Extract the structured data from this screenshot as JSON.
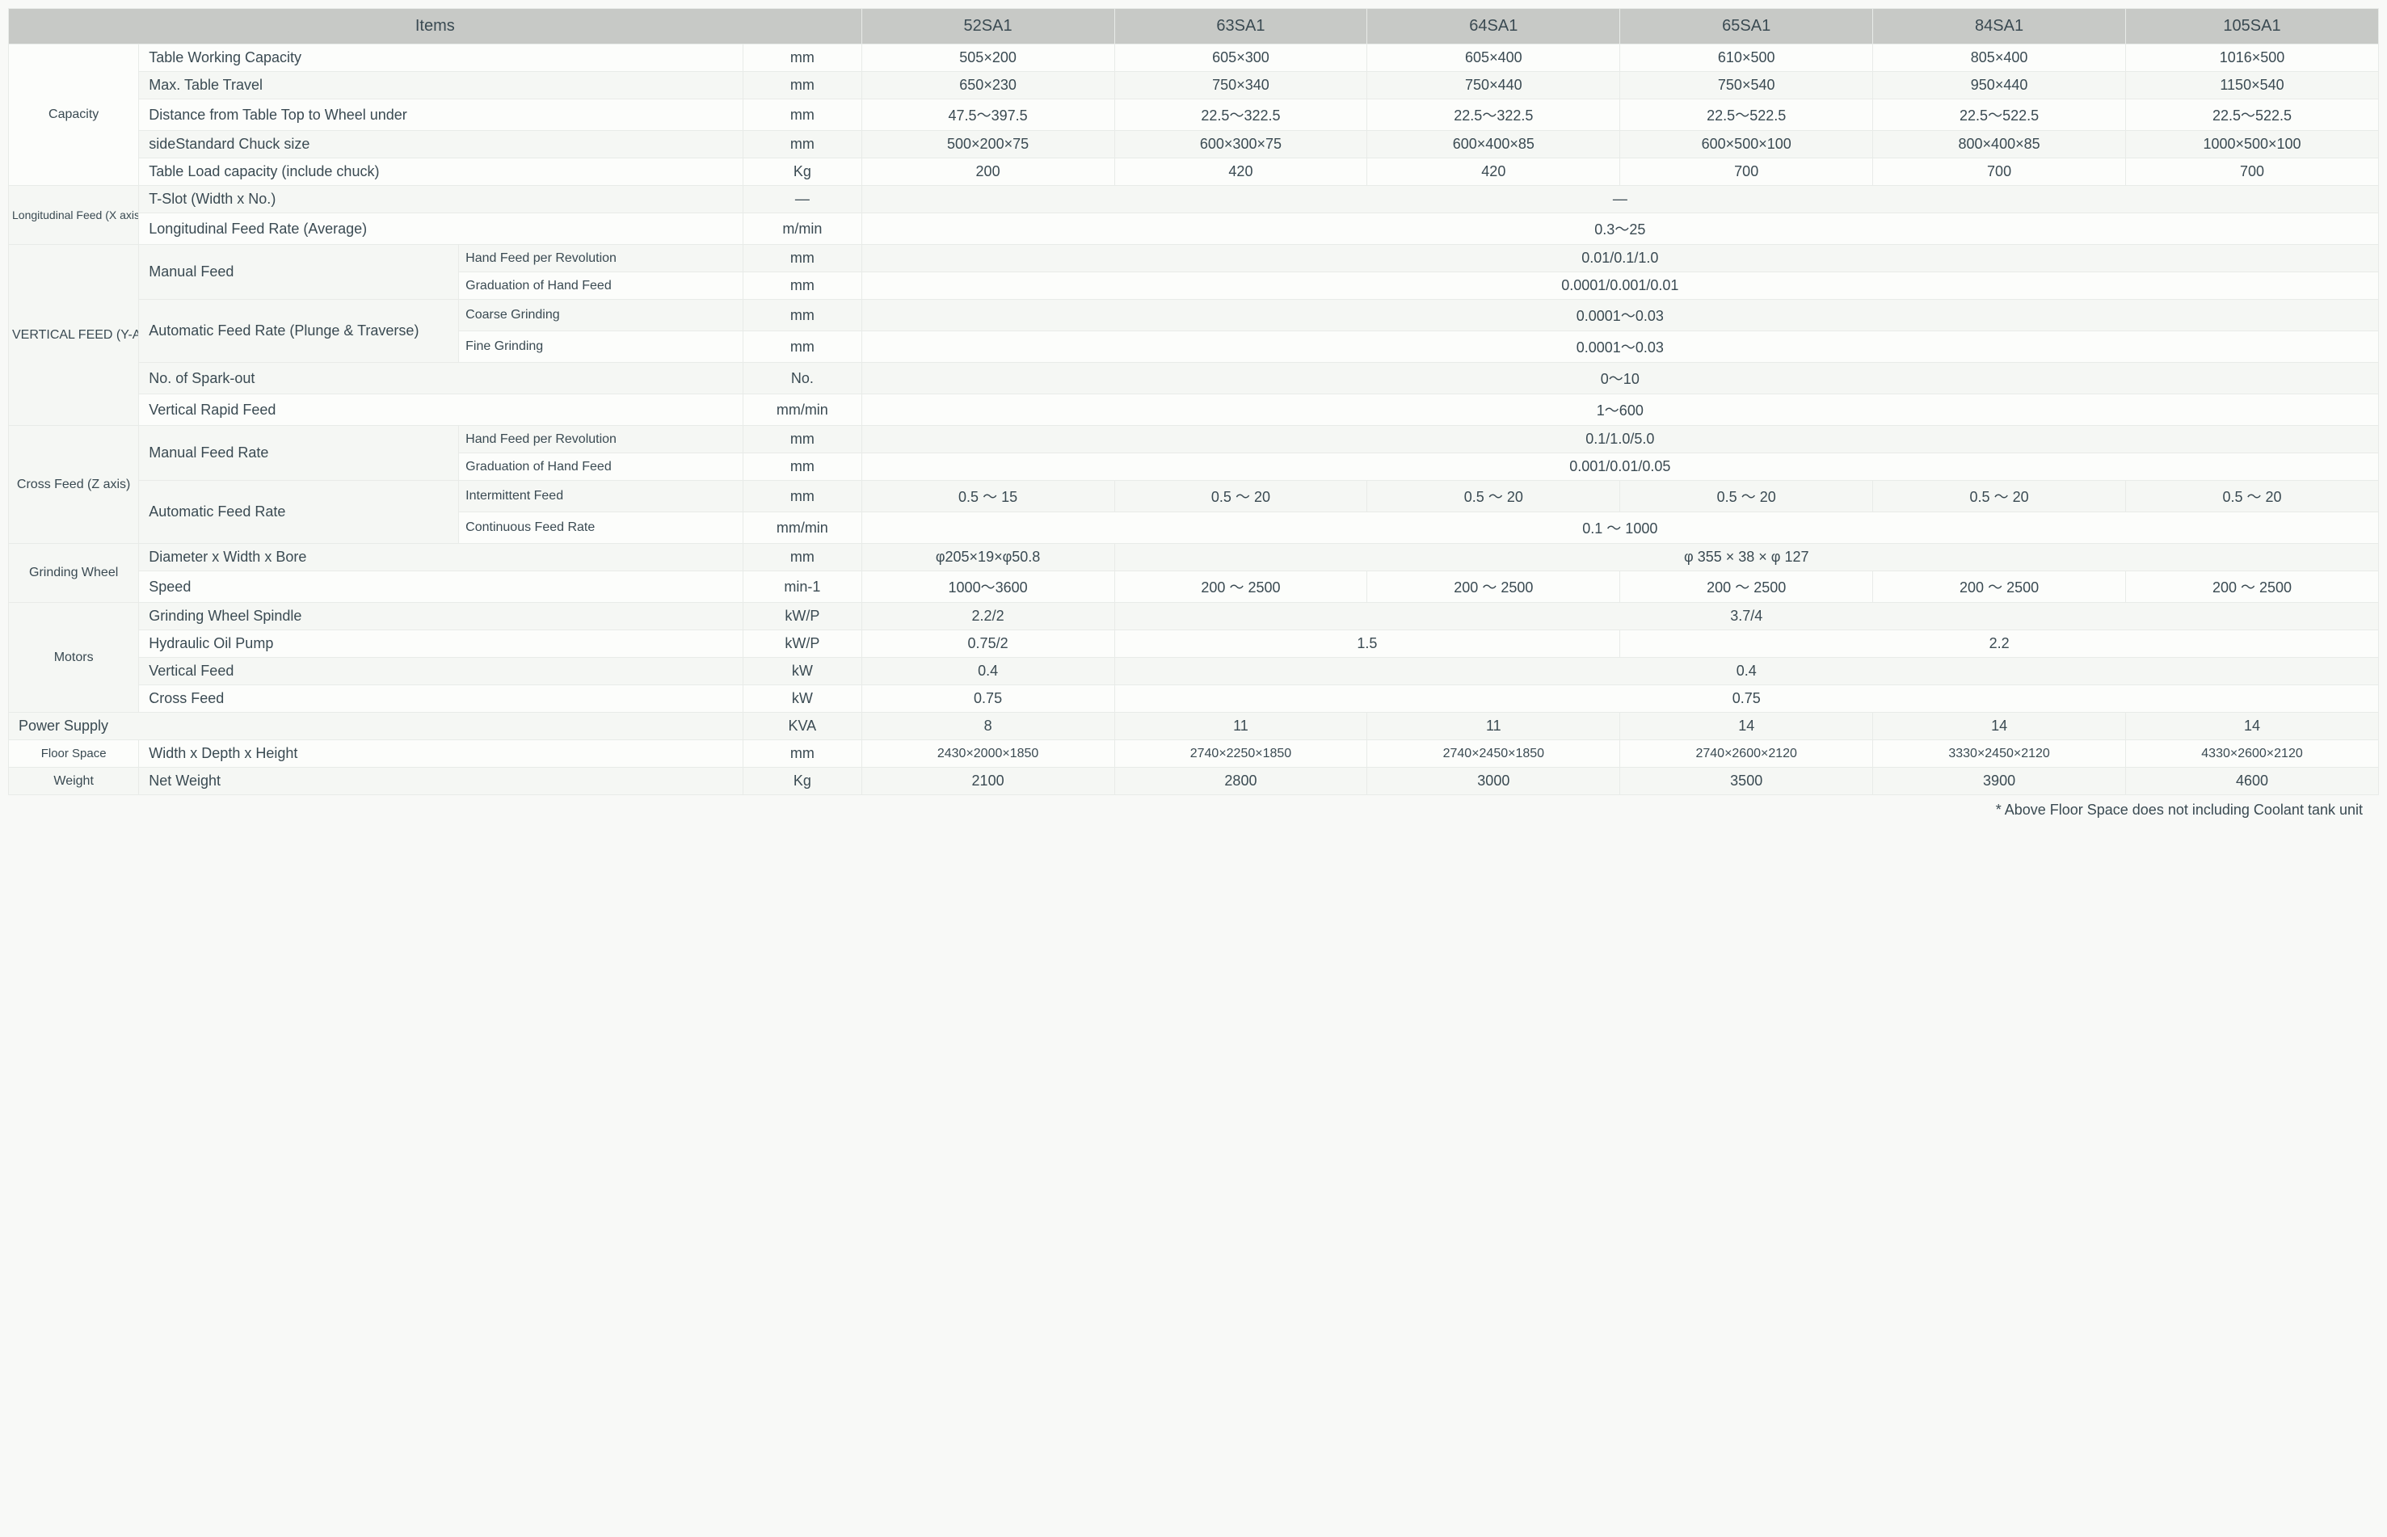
{
  "header": {
    "items_label": "Items",
    "models": [
      "52SA1",
      "63SA1",
      "64SA1",
      "65SA1",
      "84SA1",
      "105SA1"
    ]
  },
  "categories": {
    "capacity": "Capacity",
    "longfeed": "Longitudinal Feed (X axis)",
    "vertical": "VERTICAL FEED (Y-AXIS)",
    "cross": "Cross Feed (Z axis)",
    "grinding": "Grinding Wheel",
    "motors": "Motors",
    "power": "Power Supply",
    "floor": "Floor Space",
    "weight": "Weight"
  },
  "specs": {
    "twc": "Table Working Capacity",
    "mtt": "Max. Table Travel",
    "dist": "Distance from Table Top to Wheel under",
    "chuck": "sideStandard Chuck size",
    "load": "Table Load capacity (include chuck)",
    "tslot": "T-Slot (Width x No.)",
    "lfr": "Longitudinal Feed Rate (Average)",
    "manual": "Manual Feed",
    "hfpr": "Hand Feed per Revolution",
    "ghf": "Graduation of Hand Feed",
    "afr": "Automatic Feed Rate (Plunge & Traverse)",
    "afr2": "Automatic Feed Rate",
    "coarse": "Coarse Grinding",
    "fine": "Fine Grinding",
    "spark": "No. of Spark-out",
    "vrf": "Vertical Rapid Feed",
    "mfr": "Manual Feed Rate",
    "intf": "Intermittent Feed",
    "cfr": "Continuous Feed Rate",
    "dwb": "Diameter x Width x Bore",
    "speed": "Speed",
    "gws": "Grinding Wheel Spindle",
    "hop": "Hydraulic Oil Pump",
    "vf": "Vertical Feed",
    "cf": "Cross Feed",
    "wdh": "Width x Depth x Height",
    "nw": "Net Weight"
  },
  "units": {
    "mm": "mm",
    "kg": "Kg",
    "dash": "—",
    "mmin": "m/min",
    "no": "No.",
    "mmmin": "mm/min",
    "min1": "min-1",
    "kwp": "kW/P",
    "kw": "kW",
    "kva": "KVA"
  },
  "rows": {
    "twc": [
      "505×200",
      "605×300",
      "605×400",
      "610×500",
      "805×400",
      "1016×500"
    ],
    "mtt": [
      "650×230",
      "750×340",
      "750×440",
      "750×540",
      "950×440",
      "1150×540"
    ],
    "dist": [
      "47.5～397.5",
      "22.5～322.5",
      "22.5～322.5",
      "22.5～522.5",
      "22.5～522.5",
      "22.5～522.5"
    ],
    "chuck": [
      "500×200×75",
      "600×300×75",
      "600×400×85",
      "600×500×100",
      "800×400×85",
      "1000×500×100"
    ],
    "load": [
      "200",
      "420",
      "420",
      "700",
      "700",
      "700"
    ],
    "tslot_merged": "—",
    "lfr_merged": "0.3～25",
    "hfpr_v_merged": "0.01/0.1/1.0",
    "ghf_v_merged": "0.0001/0.001/0.01",
    "coarse_merged": "0.0001～0.03",
    "fine_merged": "0.0001～0.03",
    "spark_merged": "0～10",
    "vrf_merged": "1～600",
    "hfpr_c_merged": "0.1/1.0/5.0",
    "ghf_c_merged": "0.001/0.01/0.05",
    "intf": [
      "0.5 ～ 15",
      "0.5 ～ 20",
      "0.5 ～ 20",
      "0.5 ～ 20",
      "0.5 ～ 20",
      "0.5 ～ 20"
    ],
    "cfr_merged": "0.1 ～ 1000",
    "dwb_0": "φ205×19×φ50.8",
    "dwb_rest": "φ 355 × 38 × φ 127",
    "speed": [
      "1000～3600",
      "200 ～ 2500",
      "200 ～ 2500",
      "200 ～ 2500",
      "200 ～ 2500",
      "200 ～ 2500"
    ],
    "gws_0": "2.2/2",
    "gws_rest": "3.7/4",
    "hop_0": "0.75/2",
    "hop_12": "1.5",
    "hop_345": "2.2",
    "vf_0": "0.4",
    "vf_rest": "0.4",
    "cf_0": "0.75",
    "cf_rest": "0.75",
    "power": [
      "8",
      "11",
      "11",
      "14",
      "14",
      "14"
    ],
    "floor": [
      "2430×2000×1850",
      "2740×2250×1850",
      "2740×2450×1850",
      "2740×2600×2120",
      "3330×2450×2120",
      "4330×2600×2120"
    ],
    "weight": [
      "2100",
      "2800",
      "3000",
      "3500",
      "3900",
      "4600"
    ]
  },
  "footnote": "* Above Floor Space does not including Coolant tank unit",
  "style": {
    "header_bg": "#c7c9c6",
    "row_odd_bg": "#fcfdfb",
    "row_even_bg": "#f5f7f4",
    "text_color": "#3a4a52",
    "border_color": "#e8ebe8",
    "header_fontsize": 20,
    "cell_fontsize": 18
  }
}
